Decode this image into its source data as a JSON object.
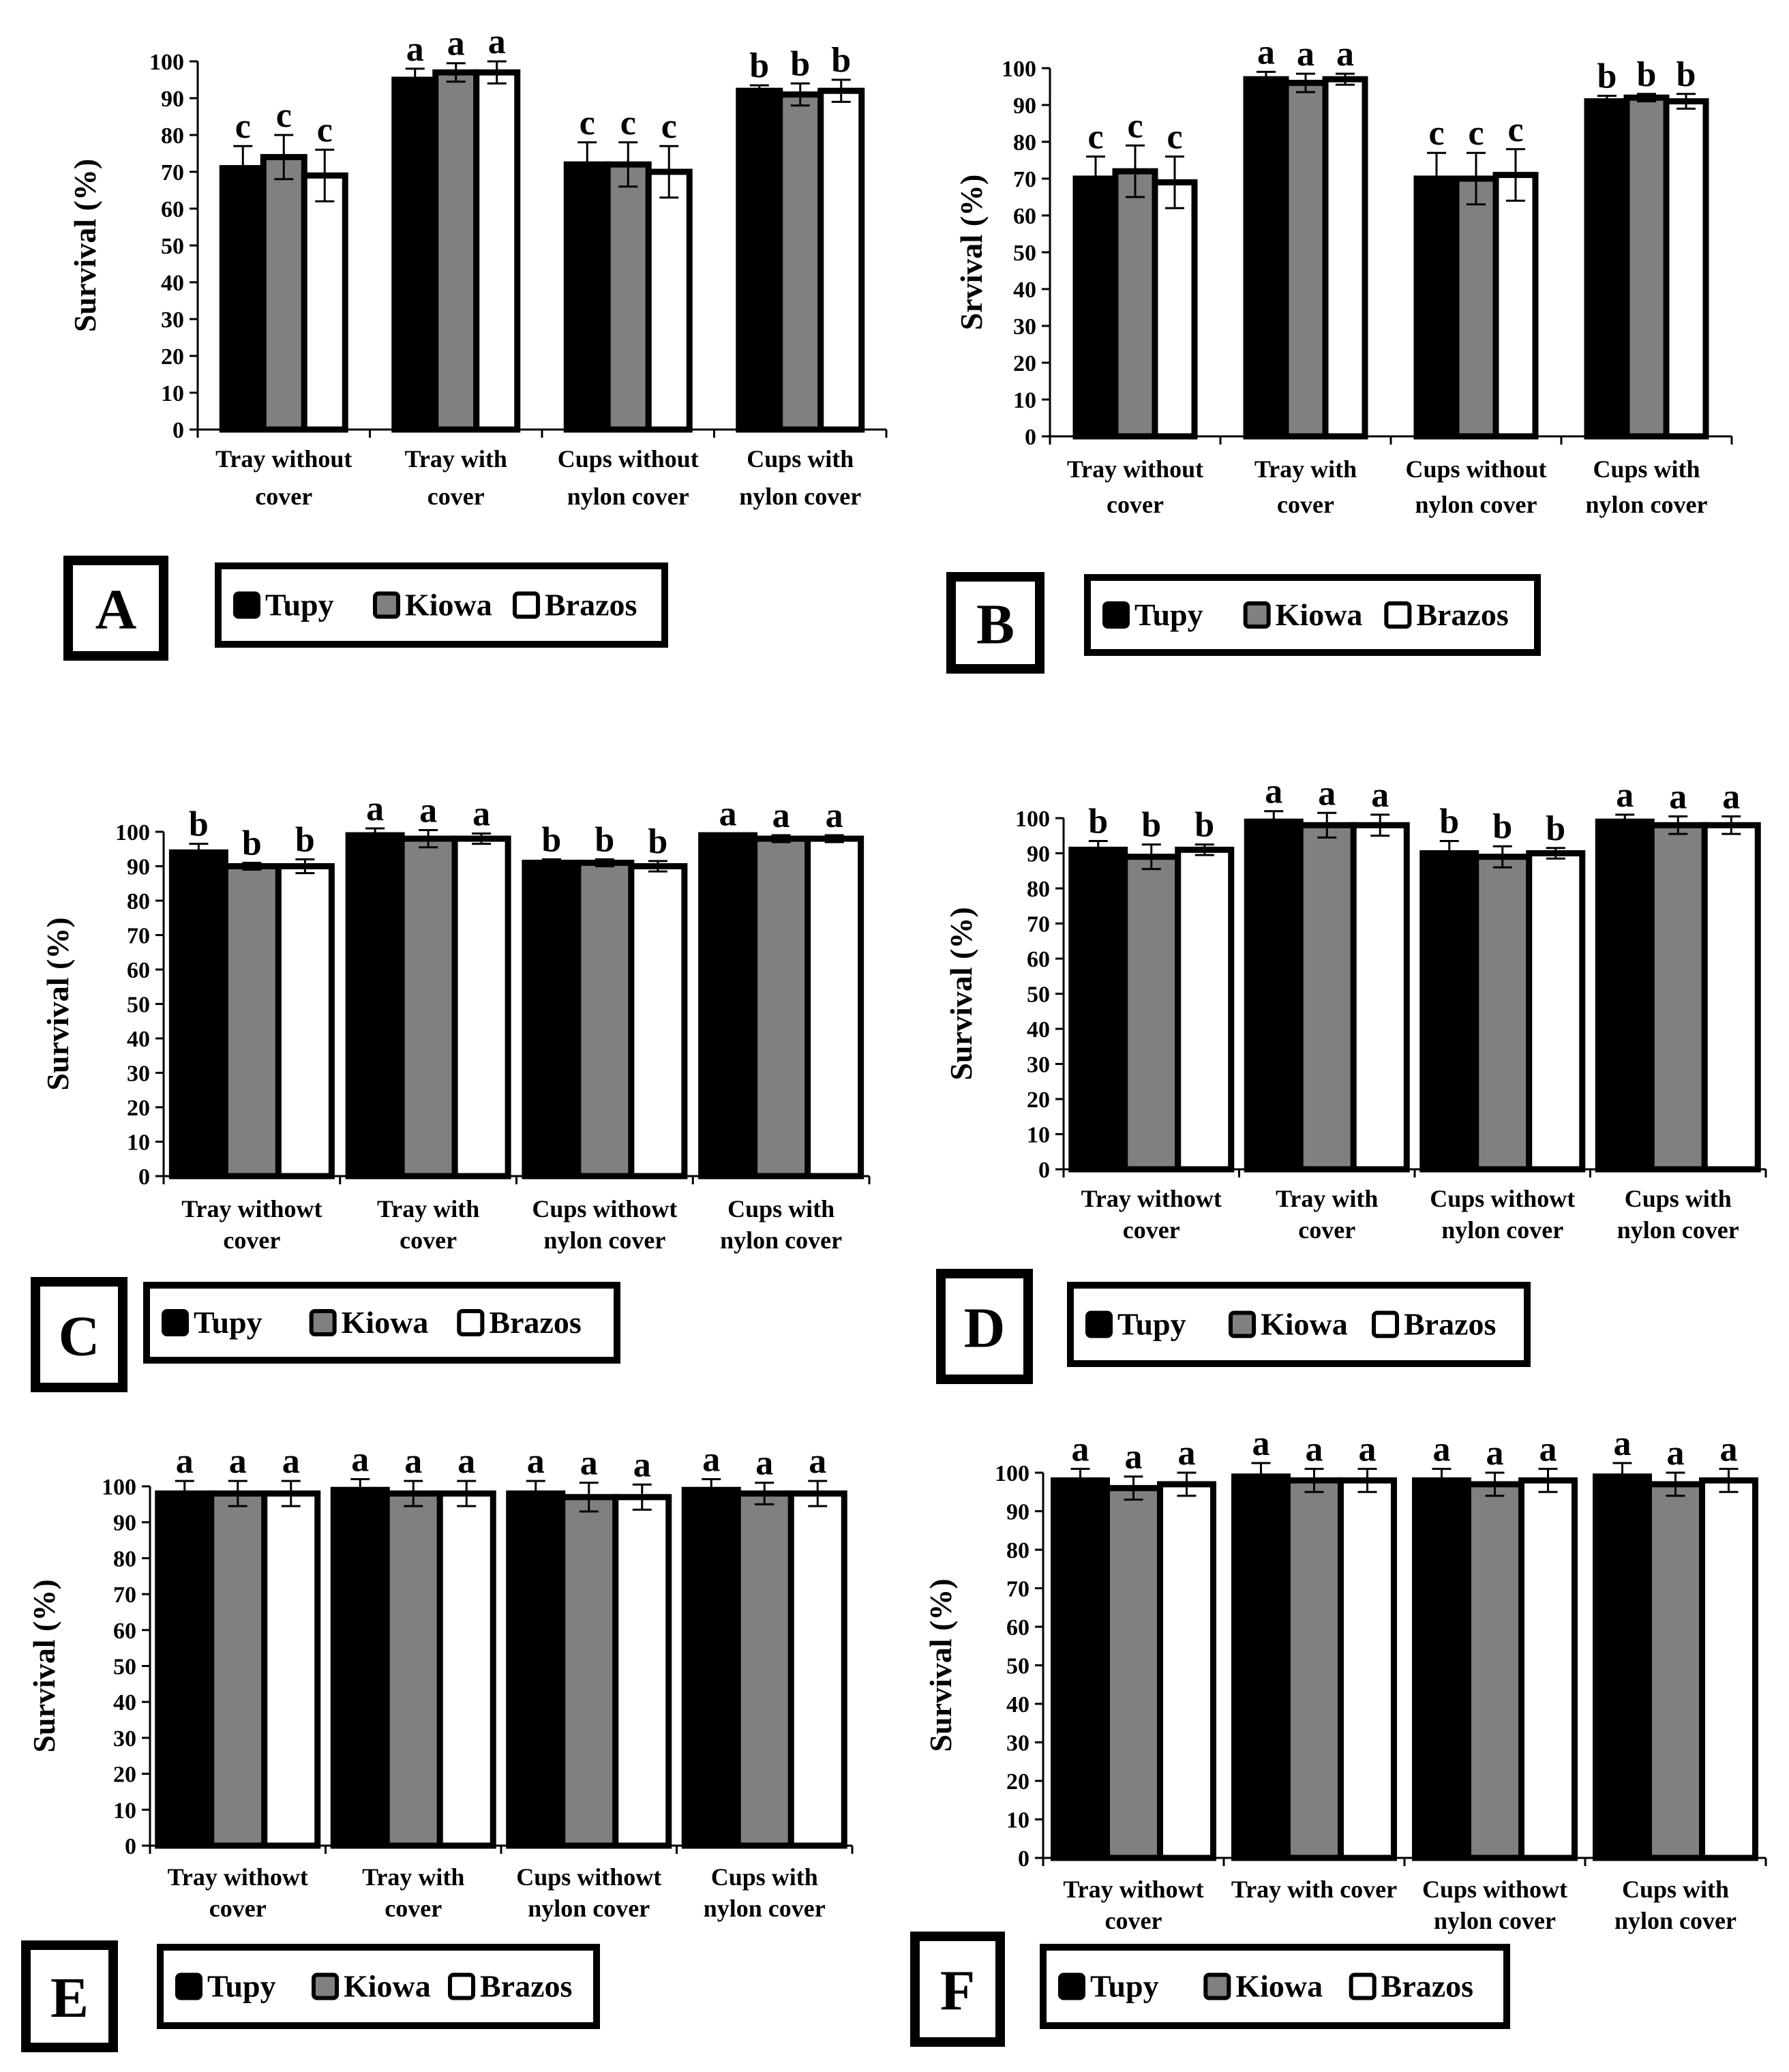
{
  "legend": [
    {
      "name": "Tupy",
      "color": "#000000"
    },
    {
      "name": "Kiowa",
      "color": "#808080"
    },
    {
      "name": "Brazos",
      "color": "#ffffff"
    }
  ],
  "panels": [
    {
      "id": "A",
      "ylabel": "Survival (%)",
      "chart_data": {
        "type": "bar",
        "categories": [
          [
            "Tray without",
            "cover"
          ],
          [
            "Tray with",
            "cover"
          ],
          [
            "Cups without",
            "nylon cover"
          ],
          [
            "Cups with",
            "nylon cover"
          ]
        ],
        "series": [
          {
            "name": "Tupy",
            "values": [
              71,
              95,
              72,
              92
            ],
            "errors": [
              6,
              3,
              6,
              1.5
            ]
          },
          {
            "name": "Kiowa",
            "values": [
              74,
              97,
              72,
              91
            ],
            "errors": [
              6,
              2.5,
              6,
              3
            ]
          },
          {
            "name": "Brazos",
            "values": [
              69,
              97,
              70,
              92
            ],
            "errors": [
              7,
              3,
              7,
              3
            ]
          }
        ],
        "sig_letters": [
          [
            "c",
            "c",
            "c"
          ],
          [
            "a",
            "a",
            "a"
          ],
          [
            "c",
            "c",
            "c"
          ],
          [
            "b",
            "b",
            "b"
          ]
        ],
        "ylim": [
          0,
          100
        ],
        "yticks": [
          0,
          10,
          20,
          30,
          40,
          50,
          60,
          70,
          80,
          90,
          100
        ]
      }
    },
    {
      "id": "B",
      "ylabel": "Srvival (%)",
      "chart_data": {
        "type": "bar",
        "categories": [
          [
            "Tray without",
            "cover"
          ],
          [
            "Tray with",
            "cover"
          ],
          [
            "Cups without",
            "nylon cover"
          ],
          [
            "Cups with",
            "nylon cover"
          ]
        ],
        "series": [
          {
            "name": "Tupy",
            "values": [
              70,
              97,
              70,
              91
            ],
            "errors": [
              6,
              2,
              7,
              1.5
            ]
          },
          {
            "name": "Kiowa",
            "values": [
              72,
              96,
              70,
              92
            ],
            "errors": [
              7,
              2.5,
              7,
              1
            ]
          },
          {
            "name": "Brazos",
            "values": [
              69,
              97,
              71,
              91
            ],
            "errors": [
              7,
              1.5,
              7,
              2
            ]
          }
        ],
        "sig_letters": [
          [
            "c",
            "c",
            "c"
          ],
          [
            "a",
            "a",
            "a"
          ],
          [
            "c",
            "c",
            "c"
          ],
          [
            "b",
            "b",
            "b"
          ]
        ],
        "ylim": [
          0,
          100
        ],
        "yticks": [
          0,
          10,
          20,
          30,
          40,
          50,
          60,
          70,
          80,
          90,
          100
        ]
      }
    },
    {
      "id": "C",
      "ylabel": "Survival (%)",
      "chart_data": {
        "type": "bar",
        "categories": [
          [
            "Tray withowt",
            "cover"
          ],
          [
            "Tray with",
            "cover"
          ],
          [
            "Cups withowt",
            "nylon cover"
          ],
          [
            "Cups with",
            "nylon cover"
          ]
        ],
        "series": [
          {
            "name": "Tupy",
            "values": [
              94,
              99,
              91,
              99
            ],
            "errors": [
              2.5,
              2,
              1,
              0.5
            ]
          },
          {
            "name": "Kiowa",
            "values": [
              90,
              98,
              91,
              98
            ],
            "errors": [
              1,
              2.5,
              1,
              1
            ]
          },
          {
            "name": "Brazos",
            "values": [
              90,
              98,
              90,
              98
            ],
            "errors": [
              2,
              1.5,
              1.5,
              1
            ]
          }
        ],
        "sig_letters": [
          [
            "b",
            "b",
            "b"
          ],
          [
            "a",
            "a",
            "a"
          ],
          [
            "b",
            "b",
            "b"
          ],
          [
            "a",
            "a",
            "a"
          ]
        ],
        "ylim": [
          0,
          100
        ],
        "yticks": [
          0,
          10,
          20,
          30,
          40,
          50,
          60,
          70,
          80,
          90,
          100
        ]
      }
    },
    {
      "id": "D",
      "ylabel": "Survival (%)",
      "chart_data": {
        "type": "bar",
        "categories": [
          [
            "Tray withowt",
            "cover"
          ],
          [
            "Tray with",
            "cover"
          ],
          [
            "Cups withowt",
            "nylon cover"
          ],
          [
            "Cups with",
            "nylon cover"
          ]
        ],
        "series": [
          {
            "name": "Tupy",
            "values": [
              91,
              99,
              90,
              99
            ],
            "errors": [
              2.5,
              3,
              3.5,
              2
            ]
          },
          {
            "name": "Kiowa",
            "values": [
              89,
              98,
              89,
              98
            ],
            "errors": [
              3.5,
              3.5,
              3,
              2.5
            ]
          },
          {
            "name": "Brazos",
            "values": [
              91,
              98,
              90,
              98
            ],
            "errors": [
              1.5,
              3,
              1.5,
              2.5
            ]
          }
        ],
        "sig_letters": [
          [
            "b",
            "b",
            "b"
          ],
          [
            "a",
            "a",
            "a"
          ],
          [
            "b",
            "b",
            "b"
          ],
          [
            "a",
            "a",
            "a"
          ]
        ],
        "ylim": [
          0,
          100
        ],
        "yticks": [
          0,
          10,
          20,
          30,
          40,
          50,
          60,
          70,
          80,
          90,
          100
        ]
      }
    },
    {
      "id": "E",
      "ylabel": "Survival (%)",
      "chart_data": {
        "type": "bar",
        "categories": [
          [
            "Tray withowt",
            "cover"
          ],
          [
            "Tray with",
            "cover"
          ],
          [
            "Cups withowt",
            "nylon cover"
          ],
          [
            "Cups with",
            "nylon cover"
          ]
        ],
        "series": [
          {
            "name": "Tupy",
            "values": [
              98,
              99,
              98,
              99
            ],
            "errors": [
              3.5,
              3,
              3.5,
              3
            ]
          },
          {
            "name": "Kiowa",
            "values": [
              98,
              98,
              97,
              98
            ],
            "errors": [
              3.5,
              3.5,
              4,
              3
            ]
          },
          {
            "name": "Brazos",
            "values": [
              98,
              98,
              97,
              98
            ],
            "errors": [
              3.5,
              3.5,
              3.5,
              3.5
            ]
          }
        ],
        "sig_letters": [
          [
            "a",
            "a",
            "a"
          ],
          [
            "a",
            "a",
            "a"
          ],
          [
            "a",
            "a",
            "a"
          ],
          [
            "a",
            "a",
            "a"
          ]
        ],
        "ylim": [
          0,
          100
        ],
        "yticks": [
          0,
          10,
          20,
          30,
          40,
          50,
          60,
          70,
          80,
          90,
          100
        ]
      }
    },
    {
      "id": "F",
      "ylabel": "Survival (%)",
      "chart_data": {
        "type": "bar",
        "categories": [
          [
            "Tray withowt",
            "cover"
          ],
          [
            "Tray with cover"
          ],
          [
            "Cups withowt",
            "nylon cover"
          ],
          [
            "Cups with",
            "nylon cover"
          ]
        ],
        "series": [
          {
            "name": "Tupy",
            "values": [
              98,
              99,
              98,
              99
            ],
            "errors": [
              3,
              3.5,
              3,
              3.5
            ]
          },
          {
            "name": "Kiowa",
            "values": [
              96,
              98,
              97,
              97
            ],
            "errors": [
              3,
              3,
              3,
              3
            ]
          },
          {
            "name": "Brazos",
            "values": [
              97,
              98,
              98,
              98
            ],
            "errors": [
              3,
              3,
              3,
              3
            ]
          }
        ],
        "sig_letters": [
          [
            "a",
            "a",
            "a"
          ],
          [
            "a",
            "a",
            "a"
          ],
          [
            "a",
            "a",
            "a"
          ],
          [
            "a",
            "a",
            "a"
          ]
        ],
        "ylim": [
          0,
          100
        ],
        "yticks": [
          0,
          10,
          20,
          30,
          40,
          50,
          60,
          70,
          80,
          90,
          100
        ]
      }
    }
  ]
}
